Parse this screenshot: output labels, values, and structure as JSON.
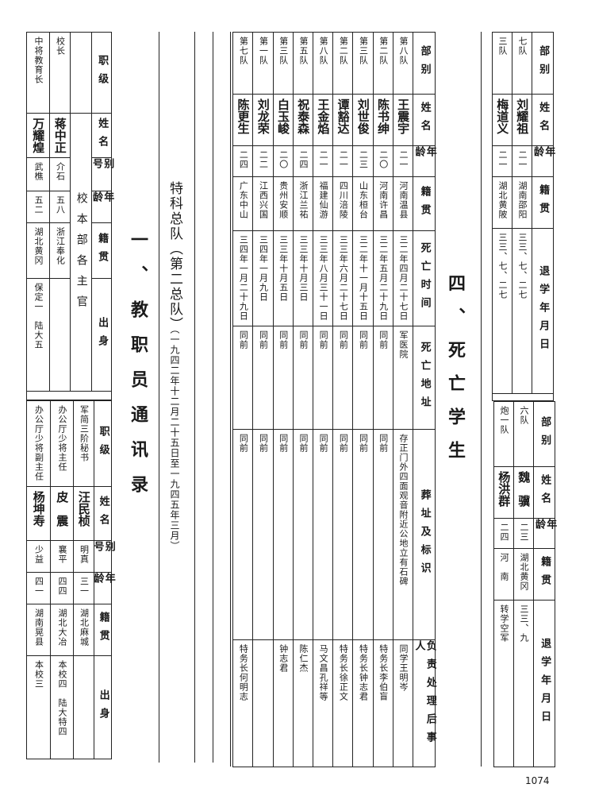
{
  "staff_section": {
    "title": "一、教职员通讯录",
    "subtitle": "特科总队（第二总队）",
    "period": "（一九四二年十二月二十五日至一九四五年三月）",
    "group_label": "校本部各主官",
    "headers": [
      "职级",
      "姓名",
      "别号",
      "年龄",
      "籍贯",
      "出身"
    ],
    "upper_rows": [
      {
        "rank": "校长",
        "name": "蒋中正",
        "alias": "介石",
        "age": "五八",
        "native": "浙江奉化",
        "background": ""
      },
      {
        "rank": "中将教育长",
        "name": "万耀煌",
        "alias": "武樵",
        "age": "五二",
        "native": "湖北黄冈",
        "background": "保定一　陆大五"
      }
    ],
    "lower_rows": [
      {
        "rank": "军简三阶秘书",
        "name": "汪民桢",
        "alias": "明真",
        "age": "三一",
        "native": "湖北麻城",
        "background": ""
      },
      {
        "rank": "办公厅少将主任",
        "name": "皮　震",
        "alias": "襄平",
        "age": "四四",
        "native": "湖北大冶",
        "background": "本校四　陆大特四"
      },
      {
        "rank": "办公厅少将副主任",
        "name": "杨坤寿",
        "alias": "少益",
        "age": "四一",
        "native": "湖南晃县",
        "background": "本校三"
      }
    ]
  },
  "death_section": {
    "title": "四、死亡学生",
    "headers": [
      "部别",
      "姓名",
      "年龄",
      "籍贯",
      "死亡时间",
      "死亡地址",
      "葬址及标识",
      "负责处理后事人"
    ],
    "rows": [
      {
        "unit": "第八队",
        "name": "王震宇",
        "age": "二一",
        "native": "河南温县",
        "date": "三二年四月二十七日",
        "place": "军医院",
        "burial": "存正门外四面观音附近公地立有石碑",
        "handler": "同学王明岑"
      },
      {
        "unit": "第二队",
        "name": "陈书绅",
        "age": "二〇",
        "native": "河南许昌",
        "date": "三二年五月二十九日",
        "place": "同前",
        "burial": "同前",
        "handler": "特务长李伯盲"
      },
      {
        "unit": "第三队",
        "name": "刘世俊",
        "age": "二三",
        "native": "山东桓台",
        "date": "三二年十一月十五日",
        "place": "同前",
        "burial": "同前",
        "handler": "特务长钟志君"
      },
      {
        "unit": "第二队",
        "name": "谭豁达",
        "age": "二一",
        "native": "四川涪陵",
        "date": "三三年六月二十七日",
        "place": "同前",
        "burial": "同前",
        "handler": "特务长徐正文"
      },
      {
        "unit": "第八队",
        "name": "王金焰",
        "age": "二一",
        "native": "福建仙游",
        "date": "三三年八月三十一日",
        "place": "同前",
        "burial": "同前",
        "handler": "马文昌孔祥等"
      },
      {
        "unit": "第五队",
        "name": "祝泰森",
        "age": "二四",
        "native": "浙江兰祐",
        "date": "三三年十月三日",
        "place": "同前",
        "burial": "同前",
        "handler": "陈仁杰"
      },
      {
        "unit": "第三队",
        "name": "白玉峻",
        "age": "二〇",
        "native": "贵州安顺",
        "date": "三三年十月五日",
        "place": "同前",
        "burial": "同前",
        "handler": "钟志君"
      },
      {
        "unit": "第一队",
        "name": "刘龙荣",
        "age": "二二",
        "native": "江西兴国",
        "date": "三四年一月九日",
        "place": "同前",
        "burial": "同前",
        "handler": ""
      },
      {
        "unit": "第七队",
        "name": "陈更生",
        "age": "二四",
        "native": "广东中山",
        "date": "三四年一月二十九日",
        "place": "同前",
        "burial": "同前",
        "handler": "特务长何明志"
      }
    ]
  },
  "withdrawal_section": {
    "headers": [
      "部别",
      "姓名",
      "年龄",
      "籍贯",
      "退学年月日"
    ],
    "upper_rows": [
      {
        "unit": "七队",
        "name": "刘耀祖",
        "age": "二一",
        "native": "湖南邵阳",
        "date": "三三、七、二七"
      },
      {
        "unit": "三队",
        "name": "梅道义",
        "age": "二一",
        "native": "湖北黄陂",
        "date": "三三、七、二七"
      }
    ],
    "lower_rows": [
      {
        "unit": "六队",
        "name": "魏　骥",
        "age": "二三",
        "native": "湖北黄冈",
        "date": "三三、九"
      },
      {
        "unit": "炮一队",
        "name": "杨洪群",
        "age": "二四",
        "native": "河　南",
        "date": "转学空军"
      }
    ]
  },
  "page_number": "1074"
}
